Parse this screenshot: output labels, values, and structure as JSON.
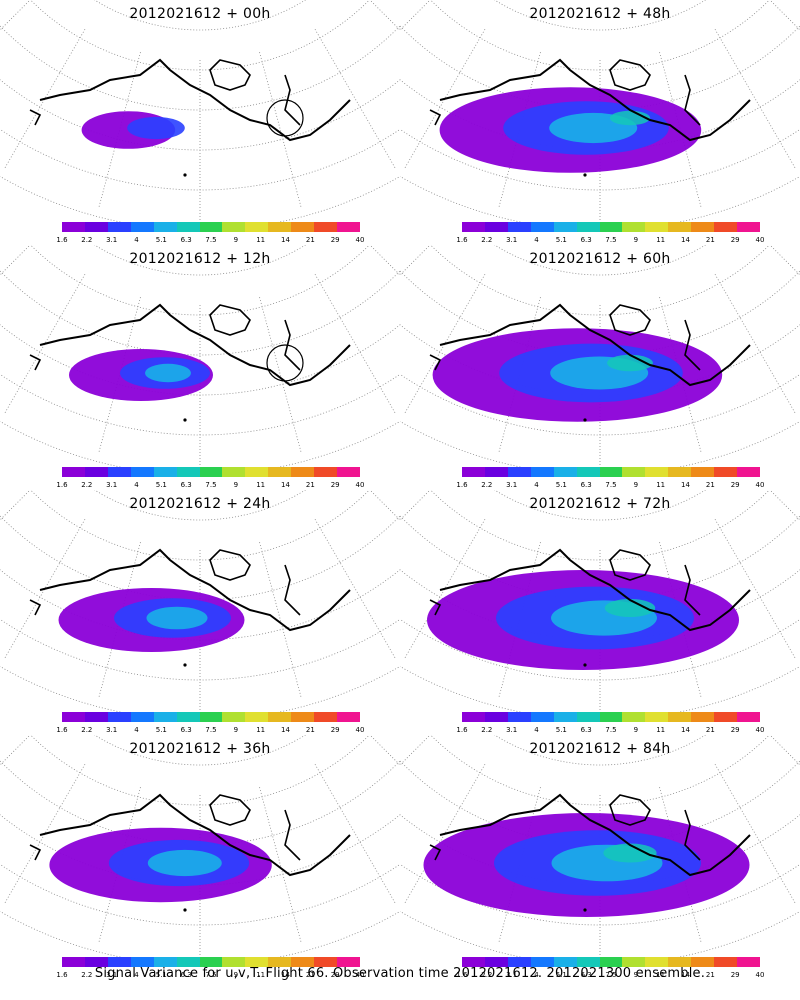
{
  "panels": [
    {
      "title": "2012021612 + 00h",
      "spread": 0.12,
      "circle": true
    },
    {
      "title": "2012021612 + 48h",
      "spread": 0.72,
      "circle": false
    },
    {
      "title": "2012021612 + 12h",
      "spread": 0.3,
      "circle": true
    },
    {
      "title": "2012021612 + 60h",
      "spread": 0.82,
      "circle": false
    },
    {
      "title": "2012021612 + 24h",
      "spread": 0.45,
      "circle": false
    },
    {
      "title": "2012021612 + 72h",
      "spread": 0.9,
      "circle": false
    },
    {
      "title": "2012021612 + 36h",
      "spread": 0.58,
      "circle": false
    },
    {
      "title": "2012021612 + 84h",
      "spread": 0.95,
      "circle": false
    }
  ],
  "colorbar": {
    "labels": [
      "1.6",
      "2.2",
      "3.1",
      "4",
      "5.1",
      "6.3",
      "7.5",
      "9",
      "11",
      "14",
      "21",
      "29",
      "40"
    ],
    "colors": [
      "#8b00d8",
      "#6a00e0",
      "#2a40ff",
      "#1478ff",
      "#1ab0e8",
      "#14c8b8",
      "#2ad050",
      "#b0e030",
      "#e0e030",
      "#e6b820",
      "#ee8a18",
      "#f04a28",
      "#f01490"
    ]
  },
  "caption": "Signal Variance for u,v,T. Flight 66. Observation time 2012021612. 2012021300 ensemble."
}
